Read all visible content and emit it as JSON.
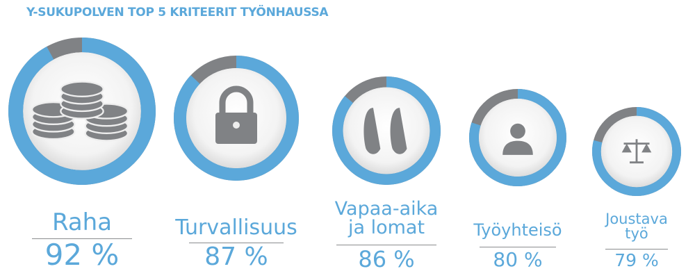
{
  "chart_data": {
    "type": "donut",
    "title": "Y-SUKUPOLVEN TOP 5 KRITEERIT TYÖNHAUSSA",
    "categories": [
      "Raha",
      "Turvallisuus",
      "Vapaa-aika ja lomat",
      "Työyhteisö",
      "Joustava työ"
    ],
    "values": [
      92,
      87,
      86,
      80,
      79
    ],
    "value_labels": [
      "92 %",
      "87 %",
      "86 %",
      "80 %",
      "79 %"
    ],
    "color": "#5ba8da",
    "rest_color": "#808285"
  }
}
